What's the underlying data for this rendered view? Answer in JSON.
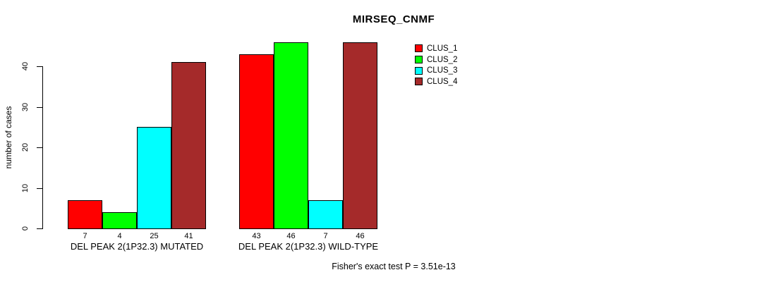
{
  "title": "MIRSEQ_CNMF",
  "footer": {
    "text": "Fisher's exact test P = 3.51e-13"
  },
  "chart_data": {
    "type": "bar",
    "title": "MIRSEQ_CNMF",
    "ylabel": "number of cases",
    "xlabel": "",
    "ylim": [
      0,
      46
    ],
    "yticks": [
      0,
      10,
      20,
      30,
      40
    ],
    "grid": false,
    "legend_position": "top-right",
    "categories": [
      "DEL PEAK 2(1P32.3) MUTATED",
      "DEL PEAK 2(1P32.3) WILD-TYPE"
    ],
    "series": [
      {
        "name": "CLUS_1",
        "color": "#FF0000",
        "values": [
          7,
          43
        ]
      },
      {
        "name": "CLUS_2",
        "color": "#00FF00",
        "values": [
          4,
          46
        ]
      },
      {
        "name": "CLUS_3",
        "color": "#00FFFF",
        "values": [
          25,
          7
        ]
      },
      {
        "name": "CLUS_4",
        "color": "#A52A2A",
        "values": [
          41,
          46
        ]
      }
    ],
    "bar_value_labels": [
      [
        7,
        4,
        25,
        41
      ],
      [
        43,
        46,
        7,
        46
      ]
    ],
    "annotation": "Fisher's exact test P = 3.51e-13"
  }
}
